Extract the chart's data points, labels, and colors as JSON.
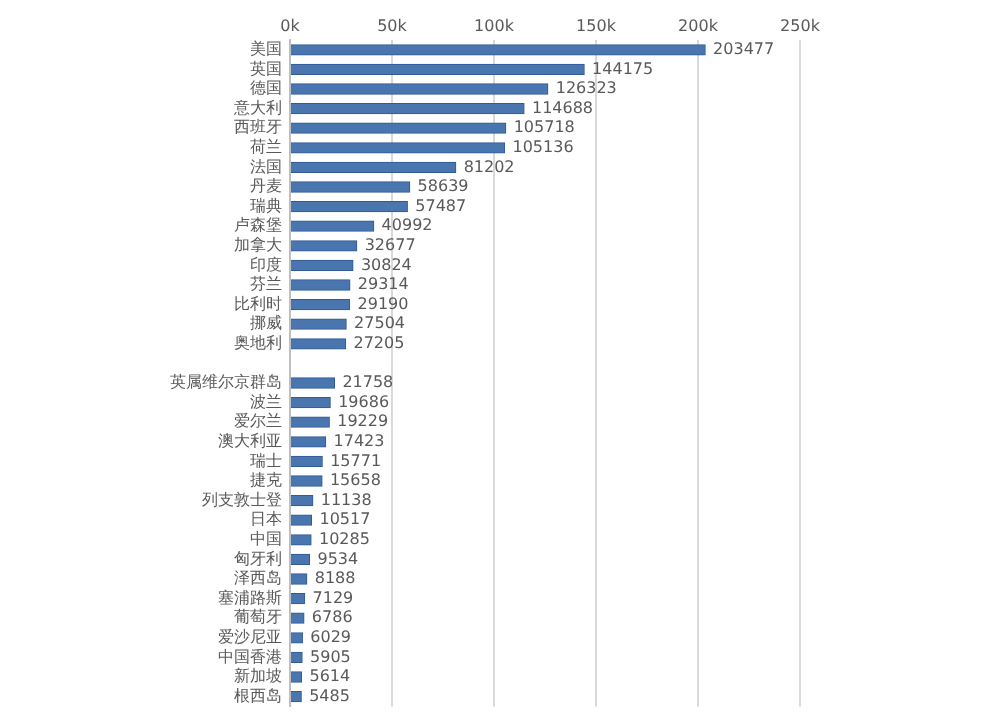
{
  "chart_data": {
    "type": "bar",
    "orientation": "horizontal",
    "categories": [
      "美国",
      "英国",
      "德国",
      "意大利",
      "西班牙",
      "荷兰",
      "法国",
      "丹麦",
      "瑞典",
      "卢森堡",
      "加拿大",
      "印度",
      "芬兰",
      "比利时",
      "挪威",
      "奥地利",
      null,
      "英属维尔京群岛",
      "波兰",
      "爱尔兰",
      "澳大利亚",
      "瑞士",
      "捷克",
      "列支敦士登",
      "日本",
      "中国",
      "匈牙利",
      "泽西岛",
      "塞浦路斯",
      "葡萄牙",
      "爱沙尼亚",
      "中国香港",
      "新加坡",
      "根西岛"
    ],
    "values": [
      203477,
      144175,
      126323,
      114688,
      105718,
      105136,
      81202,
      58639,
      57487,
      40992,
      32677,
      30824,
      29314,
      29190,
      27504,
      27205,
      null,
      21758,
      19686,
      19229,
      17423,
      15771,
      15658,
      11138,
      10517,
      10285,
      9534,
      8188,
      7129,
      6786,
      6029,
      5905,
      5614,
      5485
    ],
    "color": "#4a76b0",
    "xlim": [
      0,
      250000
    ],
    "xticks": [
      {
        "value": 0,
        "label": "0k"
      },
      {
        "value": 50000,
        "label": "50k"
      },
      {
        "value": 100000,
        "label": "100k"
      },
      {
        "value": 150000,
        "label": "150k"
      },
      {
        "value": 200000,
        "label": "200k"
      },
      {
        "value": 250000,
        "label": "250k"
      }
    ],
    "grid": "x",
    "legend": false,
    "data_labels": true
  }
}
